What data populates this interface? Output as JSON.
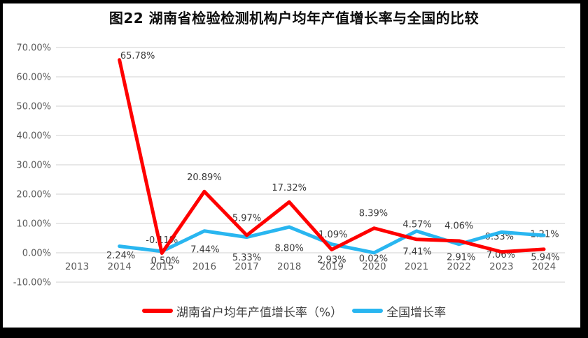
{
  "title": "图22 湖南省检验检测机构户均年产值增长率与全国的比较",
  "chart_data": {
    "type": "line",
    "title": "图22 湖南省检验检测机构户均年产值增长率与全国的比较",
    "categories": [
      "2013",
      "2014",
      "2015",
      "2016",
      "2017",
      "2018",
      "2019",
      "2020",
      "2021",
      "2022",
      "2023",
      "2024"
    ],
    "series": [
      {
        "name": "湖南省户均年产值增长率（%）",
        "color": "#FF0000",
        "values": [
          null,
          65.78,
          -0.11,
          20.89,
          5.97,
          17.32,
          1.09,
          8.39,
          4.57,
          4.06,
          0.33,
          1.21
        ],
        "label_offsets": [
          [
            0,
            0
          ],
          [
            26,
            -6
          ],
          [
            0,
            -19
          ],
          [
            0,
            -21
          ],
          [
            0,
            -25
          ],
          [
            0,
            -21
          ],
          [
            2,
            -22
          ],
          [
            -1,
            -22
          ],
          [
            1,
            -22
          ],
          [
            0,
            -22
          ],
          [
            -3,
            -22
          ],
          [
            1,
            -22
          ]
        ]
      },
      {
        "name": "全国增长率",
        "color": "#29B6F0",
        "values": [
          null,
          2.24,
          0.5,
          7.44,
          5.33,
          8.8,
          2.93,
          0.02,
          7.41,
          2.91,
          7.06,
          5.94
        ],
        "label_offsets": [
          [
            0,
            0
          ],
          [
            2,
            13
          ],
          [
            5,
            13
          ],
          [
            1,
            26
          ],
          [
            0,
            29
          ],
          [
            0,
            30
          ],
          [
            0,
            22
          ],
          [
            -1,
            8
          ],
          [
            1,
            29
          ],
          [
            3,
            18
          ],
          [
            -1,
            32
          ],
          [
            2,
            31
          ]
        ]
      }
    ],
    "y_axis": {
      "min": -10,
      "max": 70,
      "step": 10,
      "decimals": 2,
      "suffix": "%"
    },
    "xlabel": "",
    "ylabel": "",
    "grid": true,
    "legend_position": "bottom",
    "label_format": "two-decimal-percent"
  },
  "style": {
    "grid_color": "#D9D9D9",
    "axis_label_color": "#595959",
    "data_label_color": "#3b3b3b",
    "line_width": 5
  }
}
